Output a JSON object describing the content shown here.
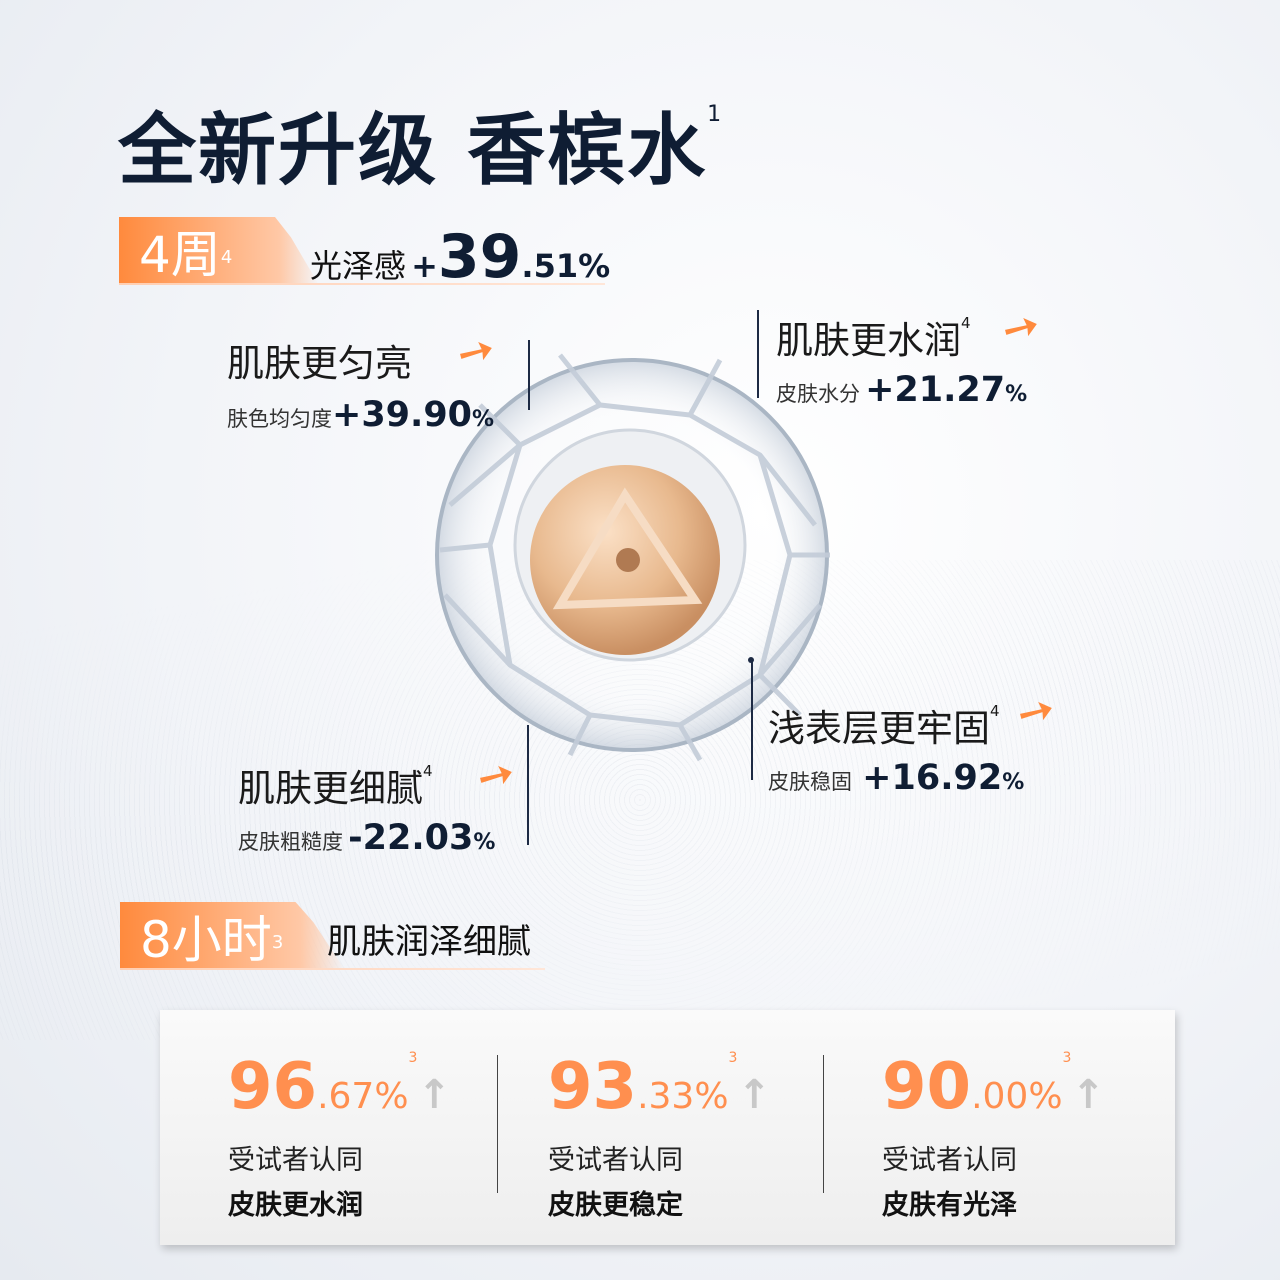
{
  "title": {
    "text": "全新升级 香槟水",
    "sup": "1"
  },
  "tag1": {
    "label": "4周",
    "sup": "4",
    "metric": "光泽感",
    "value_sign": "+",
    "value_int": "39",
    "value_dec": ".51%"
  },
  "callouts": [
    {
      "title": "肌肤更匀亮",
      "sup": "",
      "metric": "肤色均匀度",
      "value": "+39.90",
      "unit": "%"
    },
    {
      "title": "肌肤更水润",
      "sup": "4",
      "metric": "皮肤水分",
      "value": "+21.27",
      "unit": "%"
    },
    {
      "title": "浅表层更牢固",
      "sup": "4",
      "metric": "皮肤稳固",
      "value": "+16.92",
      "unit": "%"
    },
    {
      "title": "肌肤更细腻",
      "sup": "4",
      "metric": "皮肤粗糙度",
      "value": "-22.03",
      "unit": "%"
    }
  ],
  "tag2": {
    "label": "8小时",
    "sup": "3",
    "text": "肌肤润泽细腻"
  },
  "stats": [
    {
      "int": "96",
      "dec": ".67%",
      "sup": "3",
      "line1": "受试者认同",
      "line2": "皮肤更水润"
    },
    {
      "int": "93",
      "dec": ".33%",
      "sup": "3",
      "line1": "受试者认同",
      "line2": "皮肤更稳定"
    },
    {
      "int": "90",
      "dec": ".00%",
      "sup": "3",
      "line1": "受试者认同",
      "line2": "皮肤有光泽"
    }
  ],
  "colors": {
    "accent": "#ff8a3d",
    "navy": "#0f1d33",
    "arrow_gray": "#c8c8c8"
  },
  "icons": {
    "trend": "arrow-up-right-icon",
    "stat": "arrow-up-icon"
  }
}
